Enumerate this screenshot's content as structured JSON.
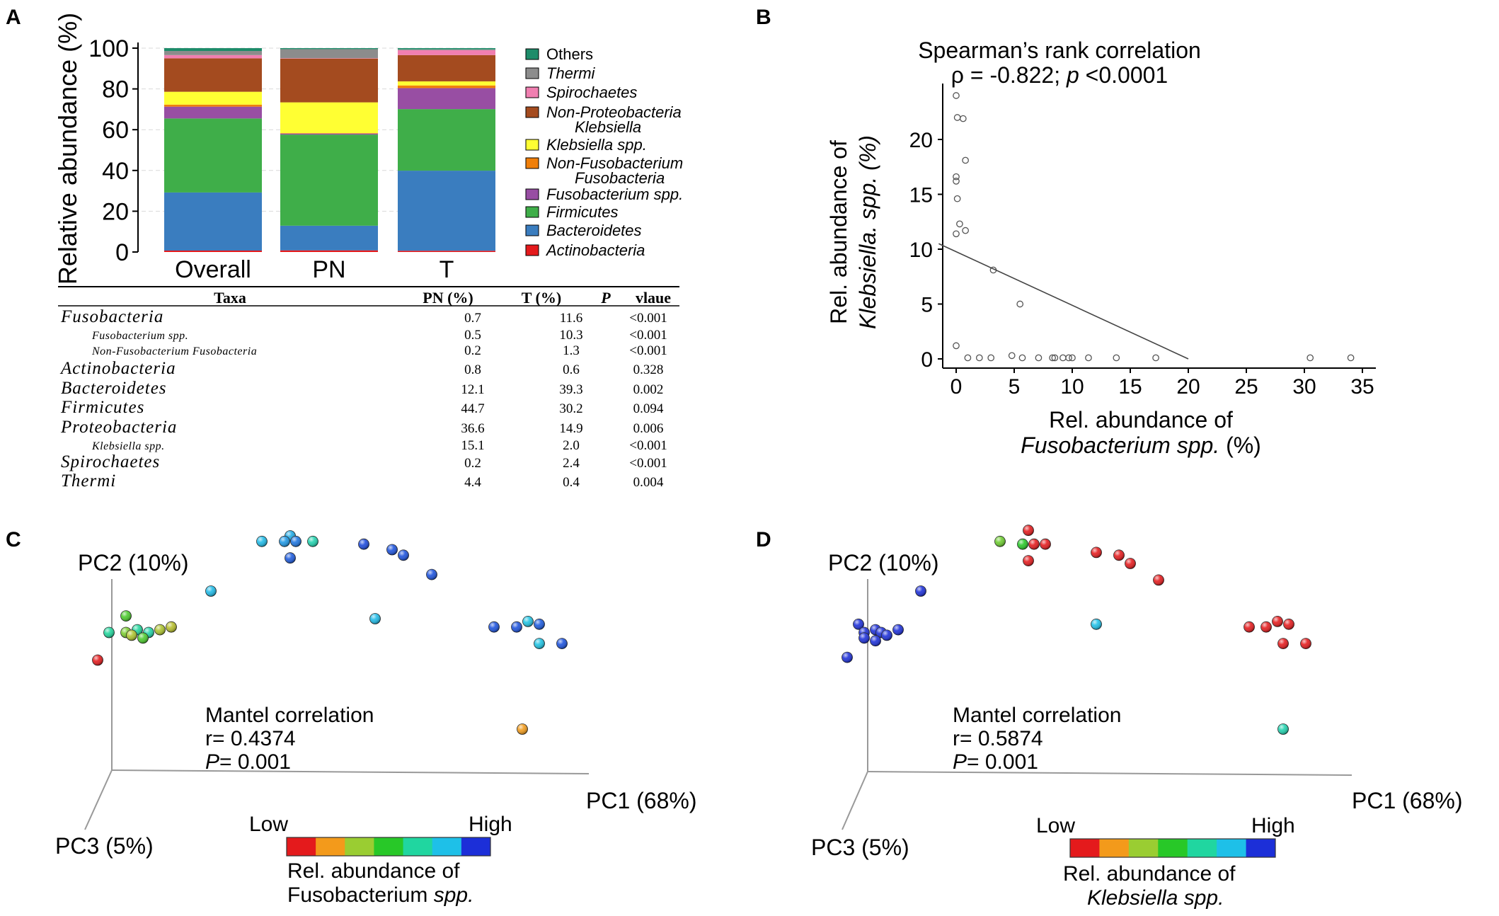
{
  "panels": {
    "a": "A",
    "b": "B",
    "c": "C",
    "d": "D"
  },
  "panel_a": {
    "ylabel": "Relative abundance (%)",
    "yticks": [
      "0",
      "20",
      "40",
      "60",
      "80",
      "100"
    ],
    "legend": [
      {
        "label": "Others",
        "color": "#1e8c6a",
        "italic": false
      },
      {
        "label": "Thermi",
        "color": "#8c8c8c",
        "italic": true
      },
      {
        "label": "Spirochaetes",
        "color": "#f07fb0",
        "italic": true
      },
      {
        "label": "Non-Proteobacteria",
        "label2": "Klebsiella",
        "color": "#a44b1f",
        "italic": true
      },
      {
        "label": "Klebsiella spp.",
        "color": "#ffff33",
        "italic": true
      },
      {
        "label": "Non-Fusobacterium",
        "label2": "Fusobacteria",
        "color": "#f07f0a",
        "italic": true
      },
      {
        "label": "Fusobacterium spp.",
        "color": "#984ea3",
        "italic": true
      },
      {
        "label": "Firmicutes",
        "color": "#3fae49",
        "italic": true
      },
      {
        "label": "Bacteroidetes",
        "color": "#3a7dbf",
        "italic": true
      },
      {
        "label": "Actinobacteria",
        "color": "#e41a1c",
        "italic": true
      }
    ],
    "table": {
      "headers": [
        "Taxa",
        "PN (%)",
        "T (%)",
        "P",
        "vlaue"
      ],
      "rows": [
        {
          "taxa": "Fusobacteria",
          "pn": "0.7",
          "t": "11.6",
          "p": "<0.001",
          "level": 1
        },
        {
          "taxa": "Fusobacterium spp.",
          "pn": "0.5",
          "t": "10.3",
          "p": "<0.001",
          "level": 2
        },
        {
          "taxa": "Non-Fusobacterium Fusobacteria",
          "pn": "0.2",
          "t": "1.3",
          "p": "<0.001",
          "level": 2
        },
        {
          "taxa": "Actinobacteria",
          "pn": "0.8",
          "t": "0.6",
          "p": "0.328",
          "level": 1
        },
        {
          "taxa": "Bacteroidetes",
          "pn": "12.1",
          "t": "39.3",
          "p": "0.002",
          "level": 1
        },
        {
          "taxa": "Firmicutes",
          "pn": "44.7",
          "t": "30.2",
          "p": "0.094",
          "level": 1
        },
        {
          "taxa": "Proteobacteria",
          "pn": "36.6",
          "t": "14.9",
          "p": "0.006",
          "level": 1
        },
        {
          "taxa": "Klebsiella spp.",
          "pn": "15.1",
          "t": "2.0",
          "p": "<0.001",
          "level": 2
        },
        {
          "taxa": "Spirochaetes",
          "pn": "0.2",
          "t": "2.4",
          "p": "<0.001",
          "level": 1
        },
        {
          "taxa": "Thermi",
          "pn": "4.4",
          "t": "0.4",
          "p": "0.004",
          "level": 1
        }
      ]
    }
  },
  "panel_b": {
    "title": "Spearman’s rank correlation",
    "stat_prefix": "ρ = -0.822; ",
    "stat_p": "p",
    "stat_suffix": " <0.0001",
    "ylabel1": "Rel. abundance of",
    "ylabel2": "Klebsiella. spp. (%)",
    "xlabel1": "Rel. abundance of",
    "xlabel2": "Fusobacterium spp.",
    "xlabel2b": " (%)"
  },
  "panel_c": {
    "pc1": "PC1 (68%)",
    "pc2": "PC2 (10%)",
    "pc3": "PC3 (5%)",
    "mantel_title": "Mantel correlation",
    "mantel_r": "r= 0.4374",
    "mantel_p_sym": "P",
    "mantel_p_val": "= 0.001",
    "low": "Low",
    "high": "High",
    "cb_label1": "Rel. abundance of",
    "cb_label2": "Fusobacterium ",
    "cb_label2b": "spp."
  },
  "panel_d": {
    "pc1": "PC1 (68%)",
    "pc2": "PC2 (10%)",
    "pc3": "PC3 (5%)",
    "mantel_title": "Mantel correlation",
    "mantel_r": "r= 0.5874",
    "mantel_p_sym": "P",
    "mantel_p_val": "= 0.001",
    "low": "Low",
    "high": "High",
    "cb_label1": "Rel. abundance of",
    "cb_label2": "Klebsiella spp."
  },
  "colorbar_colors": [
    "#e41a1c",
    "#f39a1b",
    "#9acd32",
    "#28c828",
    "#20d6a0",
    "#1ec0e8",
    "#1c2fd8"
  ],
  "chart_data": [
    {
      "type": "bar",
      "stacked": true,
      "title": "",
      "xlabel": "",
      "ylabel": "Relative abundance (%)",
      "ylim": [
        0,
        100
      ],
      "categories": [
        "Overall",
        "PN",
        "T"
      ],
      "series": [
        {
          "name": "Actinobacteria",
          "color": "#e41a1c",
          "values": [
            0.7,
            0.8,
            0.6
          ]
        },
        {
          "name": "Bacteroidetes",
          "color": "#3a7dbf",
          "values": [
            28.5,
            12.1,
            39.3
          ]
        },
        {
          "name": "Firmicutes",
          "color": "#3fae49",
          "values": [
            36.3,
            44.7,
            30.2
          ]
        },
        {
          "name": "Fusobacterium spp.",
          "color": "#984ea3",
          "values": [
            5.8,
            0.5,
            10.3
          ]
        },
        {
          "name": "Non-Fusobacterium Fusobacteria",
          "color": "#f07f0a",
          "values": [
            1.0,
            0.2,
            1.3
          ]
        },
        {
          "name": "Klebsiella spp.",
          "color": "#ffff33",
          "values": [
            6.3,
            15.1,
            2.0
          ]
        },
        {
          "name": "Non-Proteobacteria Klebsiella",
          "color": "#a44b1f",
          "values": [
            16.4,
            21.5,
            12.9
          ]
        },
        {
          "name": "Spirochaetes",
          "color": "#f07fb0",
          "values": [
            1.6,
            0.2,
            2.4
          ]
        },
        {
          "name": "Thermi",
          "color": "#8c8c8c",
          "values": [
            2.0,
            4.4,
            0.4
          ]
        },
        {
          "name": "Others",
          "color": "#1e8c6a",
          "values": [
            1.4,
            0.5,
            0.6
          ]
        }
      ]
    },
    {
      "type": "scatter",
      "title": "Spearman’s rank correlation",
      "xlabel": "Rel. abundance of Fusobacterium spp. (%)",
      "ylabel": "Rel. abundance of Klebsiella. spp. (%)",
      "xlim": [
        -1.5,
        36
      ],
      "ylim": [
        -0.8,
        25
      ],
      "xticks": [
        0,
        5,
        10,
        15,
        20,
        25,
        30,
        35
      ],
      "yticks": [
        0,
        5,
        10,
        15,
        20
      ],
      "points": [
        [
          0,
          24.0
        ],
        [
          0.1,
          22.0
        ],
        [
          0.6,
          21.9
        ],
        [
          0.8,
          18.1
        ],
        [
          0,
          16.6
        ],
        [
          0,
          16.2
        ],
        [
          0.1,
          14.6
        ],
        [
          0.3,
          12.3
        ],
        [
          0.8,
          11.7
        ],
        [
          0,
          11.4
        ],
        [
          0,
          1.2
        ],
        [
          3.2,
          8.1
        ],
        [
          5.5,
          5.0
        ],
        [
          1.0,
          0.1
        ],
        [
          2.0,
          0.1
        ],
        [
          3.0,
          0.1
        ],
        [
          4.8,
          0.3
        ],
        [
          5.7,
          0.1
        ],
        [
          7.1,
          0.1
        ],
        [
          8.3,
          0.1
        ],
        [
          8.5,
          0.1
        ],
        [
          9.2,
          0.1
        ],
        [
          9.7,
          0.1
        ],
        [
          10.0,
          0.1
        ],
        [
          11.4,
          0.1
        ],
        [
          13.8,
          0.1
        ],
        [
          17.2,
          0.1
        ],
        [
          30.5,
          0.1
        ],
        [
          34.0,
          0.1
        ]
      ],
      "fit_line": [
        [
          -1.5,
          10.5
        ],
        [
          20.0,
          0
        ]
      ]
    },
    {
      "type": "scatter",
      "title": "",
      "note": "3D PCoA; point color = relative abundance of Fusobacterium spp. (0=Low, 1=High)",
      "axes": [
        "PC1 (68%)",
        "PC2 (10%)",
        "PC3 (5%)"
      ],
      "xlim": [
        0,
        1
      ],
      "ylim": [
        0,
        1
      ],
      "points": [
        {
          "x": 0.3,
          "y": 0.88,
          "v": 0.84
        },
        {
          "x": 0.35,
          "y": 0.9,
          "v": 0.86
        },
        {
          "x": 0.34,
          "y": 0.88,
          "v": 0.88
        },
        {
          "x": 0.36,
          "y": 0.88,
          "v": 0.92
        },
        {
          "x": 0.39,
          "y": 0.88,
          "v": 0.7
        },
        {
          "x": 0.35,
          "y": 0.82,
          "v": 0.95
        },
        {
          "x": 0.48,
          "y": 0.87,
          "v": 0.97
        },
        {
          "x": 0.53,
          "y": 0.85,
          "v": 0.96
        },
        {
          "x": 0.55,
          "y": 0.83,
          "v": 0.96
        },
        {
          "x": 0.6,
          "y": 0.76,
          "v": 0.96
        },
        {
          "x": 0.21,
          "y": 0.7,
          "v": 0.84
        },
        {
          "x": 0.5,
          "y": 0.6,
          "v": 0.84
        },
        {
          "x": 0.06,
          "y": 0.61,
          "v": 0.45
        },
        {
          "x": 0.06,
          "y": 0.55,
          "v": 0.38
        },
        {
          "x": 0.08,
          "y": 0.56,
          "v": 0.66
        },
        {
          "x": 0.1,
          "y": 0.55,
          "v": 0.68
        },
        {
          "x": 0.07,
          "y": 0.54,
          "v": 0.3
        },
        {
          "x": 0.12,
          "y": 0.56,
          "v": 0.3
        },
        {
          "x": 0.14,
          "y": 0.57,
          "v": 0.28
        },
        {
          "x": 0.03,
          "y": 0.55,
          "v": 0.66
        },
        {
          "x": 0.09,
          "y": 0.53,
          "v": 0.45
        },
        {
          "x": 0.01,
          "y": 0.45,
          "v": 0.0
        },
        {
          "x": 0.71,
          "y": 0.57,
          "v": 0.96
        },
        {
          "x": 0.75,
          "y": 0.57,
          "v": 0.96
        },
        {
          "x": 0.77,
          "y": 0.59,
          "v": 0.82
        },
        {
          "x": 0.79,
          "y": 0.58,
          "v": 0.95
        },
        {
          "x": 0.79,
          "y": 0.51,
          "v": 0.82
        },
        {
          "x": 0.83,
          "y": 0.51,
          "v": 0.96
        },
        {
          "x": 0.76,
          "y": 0.2,
          "v": 0.17
        }
      ]
    },
    {
      "type": "scatter",
      "title": "",
      "note": "3D PCoA; point color = relative abundance of Klebsiella spp. (0=Low, 1=High)",
      "axes": [
        "PC1 (68%)",
        "PC2 (10%)",
        "PC3 (5%)"
      ],
      "xlim": [
        0,
        1
      ],
      "ylim": [
        0,
        1
      ],
      "points": [
        {
          "x": 0.32,
          "y": 0.92,
          "v": 0.0
        },
        {
          "x": 0.27,
          "y": 0.88,
          "v": 0.4
        },
        {
          "x": 0.31,
          "y": 0.87,
          "v": 0.5
        },
        {
          "x": 0.33,
          "y": 0.87,
          "v": 0.0
        },
        {
          "x": 0.35,
          "y": 0.87,
          "v": 0.0
        },
        {
          "x": 0.32,
          "y": 0.81,
          "v": 0.0
        },
        {
          "x": 0.44,
          "y": 0.84,
          "v": 0.0
        },
        {
          "x": 0.48,
          "y": 0.83,
          "v": 0.0
        },
        {
          "x": 0.5,
          "y": 0.8,
          "v": 0.0
        },
        {
          "x": 0.55,
          "y": 0.74,
          "v": 0.0
        },
        {
          "x": 0.13,
          "y": 0.7,
          "v": 1.0
        },
        {
          "x": 0.44,
          "y": 0.58,
          "v": 0.83
        },
        {
          "x": 0.02,
          "y": 0.58,
          "v": 1.0
        },
        {
          "x": 0.03,
          "y": 0.55,
          "v": 1.0
        },
        {
          "x": 0.05,
          "y": 0.56,
          "v": 1.0
        },
        {
          "x": 0.06,
          "y": 0.55,
          "v": 1.0
        },
        {
          "x": 0.03,
          "y": 0.53,
          "v": 1.0
        },
        {
          "x": 0.07,
          "y": 0.54,
          "v": 1.0
        },
        {
          "x": 0.09,
          "y": 0.56,
          "v": 1.0
        },
        {
          "x": 0.05,
          "y": 0.52,
          "v": 1.0
        },
        {
          "x": 0.0,
          "y": 0.46,
          "v": 1.0
        },
        {
          "x": 0.71,
          "y": 0.57,
          "v": 0.0
        },
        {
          "x": 0.74,
          "y": 0.57,
          "v": 0.0
        },
        {
          "x": 0.76,
          "y": 0.59,
          "v": 0.0
        },
        {
          "x": 0.78,
          "y": 0.58,
          "v": 0.0
        },
        {
          "x": 0.77,
          "y": 0.51,
          "v": 0.0
        },
        {
          "x": 0.81,
          "y": 0.51,
          "v": 0.0
        },
        {
          "x": 0.77,
          "y": 0.2,
          "v": 0.7
        }
      ]
    }
  ]
}
